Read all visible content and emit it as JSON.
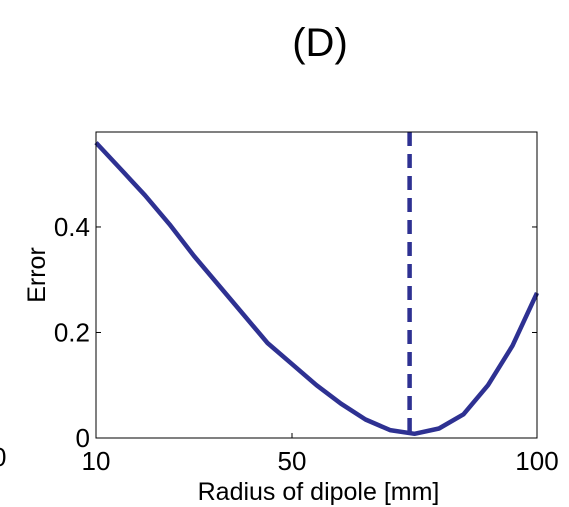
{
  "panel_title": "(D)",
  "left_edge_fragment": "0",
  "chart_data": {
    "type": "line",
    "title": "(D)",
    "xlabel": "Radius of dipole [mm]",
    "ylabel": "Error",
    "xlim": [
      10,
      100
    ],
    "ylim": [
      0,
      0.58
    ],
    "xticks": [
      10,
      50,
      100
    ],
    "xtick_labels": [
      "10",
      "50",
      "100"
    ],
    "yticks": [
      0,
      0.2,
      0.4
    ],
    "ytick_labels": [
      "0",
      "0.2",
      "0.4"
    ],
    "grid": false,
    "colors": {
      "line": "#2e3192",
      "axis": "#000000"
    },
    "series": [
      {
        "x": [
          10,
          15,
          20,
          25,
          30,
          35,
          40,
          45,
          50,
          55,
          60,
          65,
          70,
          75,
          80,
          85,
          90,
          95,
          100
        ],
        "y": [
          0.56,
          0.51,
          0.46,
          0.405,
          0.345,
          0.29,
          0.235,
          0.18,
          0.14,
          0.1,
          0.065,
          0.035,
          0.015,
          0.008,
          0.018,
          0.045,
          0.1,
          0.175,
          0.275
        ]
      }
    ],
    "annotations": [
      {
        "type": "vline",
        "x": 74,
        "style": "dashed"
      }
    ]
  }
}
